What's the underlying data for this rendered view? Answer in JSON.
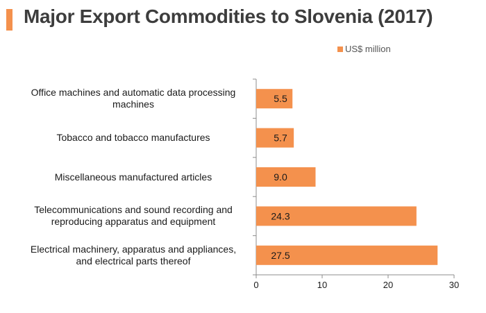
{
  "title": "Major Export Commodities to Slovenia (2017)",
  "accent_color": "#f4914d",
  "chart_data": {
    "type": "bar",
    "orientation": "horizontal",
    "title": "Major Export Commodities to Slovenia (2017)",
    "categories": [
      "Office machines and automatic data processing machines",
      "Tobacco and tobacco manufactures",
      "Miscellaneous manufactured articles",
      "Telecommunications and sound recording and reproducing apparatus and equipment",
      "Electrical machinery, apparatus and appliances, and electrical parts thereof"
    ],
    "category_label_lines": [
      [
        "Office machines and automatic data processing",
        "machines"
      ],
      [
        "Tobacco and tobacco manufactures"
      ],
      [
        "Miscellaneous manufactured articles"
      ],
      [
        "Telecommunications and sound recording and",
        "reproducing apparatus and equipment"
      ],
      [
        "Electrical machinery, apparatus and appliances,",
        "and electrical parts thereof"
      ]
    ],
    "series": [
      {
        "name": "US$ million",
        "values": [
          5.5,
          5.7,
          9.0,
          24.3,
          27.5
        ],
        "labels": [
          "5.5",
          "5.7",
          "9.0",
          "24.3",
          "27.5"
        ],
        "color": "#f4914d"
      }
    ],
    "xlim": [
      0,
      30
    ],
    "xticks": [
      "0",
      "10",
      "20",
      "30"
    ],
    "xlabel": "",
    "ylabel": "",
    "grid": false,
    "legend": "top-right"
  }
}
